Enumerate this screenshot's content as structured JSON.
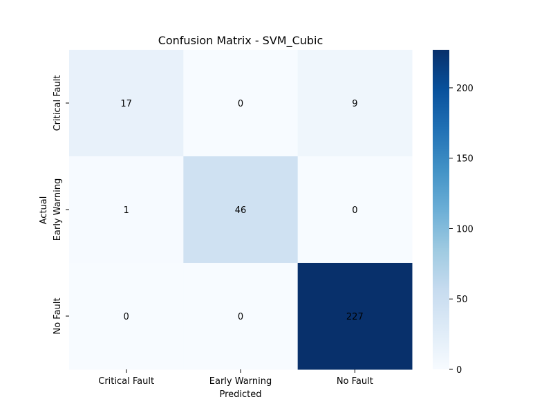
{
  "chart_data": {
    "type": "heatmap",
    "title": "Confusion Matrix - SVM_Cubic",
    "xlabel": "Predicted",
    "ylabel": "Actual",
    "x_categories": [
      "Critical Fault",
      "Early Warning",
      "No Fault"
    ],
    "y_categories": [
      "Critical Fault",
      "Early Warning",
      "No Fault"
    ],
    "values": [
      [
        17,
        0,
        9
      ],
      [
        1,
        46,
        0
      ],
      [
        0,
        0,
        227
      ]
    ],
    "colormap": "Blues",
    "colorbar": {
      "min": 0,
      "max": 227,
      "ticks": [
        0,
        50,
        100,
        150,
        200
      ]
    },
    "annotation_colors": {
      "dark": "#262626",
      "light": "#ffffff"
    }
  }
}
